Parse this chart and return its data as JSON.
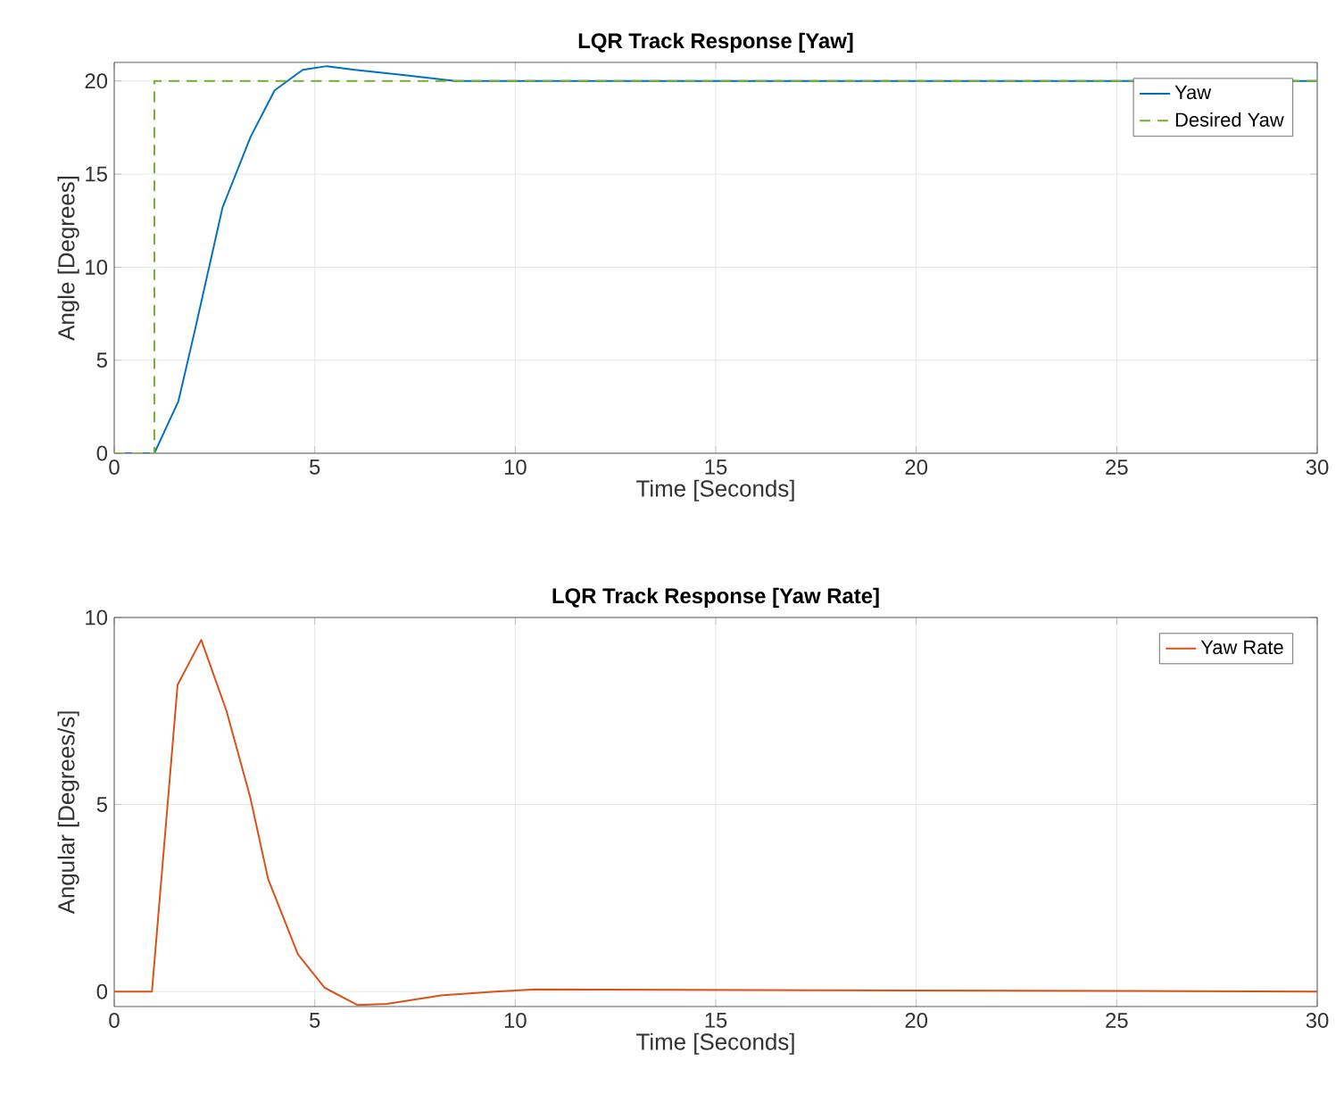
{
  "chart_data": [
    {
      "type": "line",
      "title": "LQR Track Response [Yaw]",
      "xlabel": "Time [Seconds]",
      "ylabel": "Angle [Degrees]",
      "xlim": [
        0,
        30
      ],
      "ylim": [
        0,
        21
      ],
      "xticks": [
        0,
        5,
        10,
        15,
        20,
        25,
        30
      ],
      "yticks": [
        0,
        5,
        10,
        15,
        20
      ],
      "grid": true,
      "legend": "top right",
      "series": [
        {
          "name": "Yaw",
          "color": "#0072bd",
          "line_style": "solid",
          "x": [
            0,
            0.9,
            1,
            1.6,
            2,
            2.7,
            3.4,
            4,
            4.7,
            5.3,
            6,
            7.3,
            8.5,
            10,
            30
          ],
          "values": [
            0,
            0,
            0,
            2.8,
            6.5,
            13.2,
            17,
            19.5,
            20.6,
            20.8,
            20.6,
            20.3,
            20,
            20,
            20
          ]
        },
        {
          "name": "Desired Yaw",
          "color": "#77ac30",
          "line_style": "dashed",
          "x": [
            0,
            1,
            1,
            30
          ],
          "values": [
            0,
            0,
            20,
            20
          ]
        }
      ]
    },
    {
      "type": "line",
      "title": "LQR Track Response [Yaw Rate]",
      "xlabel": "Time [Seconds]",
      "ylabel": "Angular [Degrees/s]",
      "xlim": [
        0,
        30
      ],
      "ylim": [
        -0.4,
        10
      ],
      "xticks": [
        0,
        5,
        10,
        15,
        20,
        25,
        30
      ],
      "yticks": [
        0,
        5,
        10
      ],
      "grid": true,
      "legend": "top right",
      "series": [
        {
          "name": "Yaw Rate",
          "color": "#d95319",
          "line_style": "solid",
          "x": [
            0,
            0.94,
            1.58,
            2.17,
            2.8,
            3.39,
            3.84,
            4.58,
            5.25,
            6.07,
            6.8,
            8.15,
            9.5,
            10.5,
            30
          ],
          "values": [
            0,
            0,
            8.2,
            9.4,
            7.5,
            5.2,
            3.0,
            1.0,
            0.1,
            -0.36,
            -0.33,
            -0.1,
            0,
            0.06,
            0
          ]
        }
      ]
    }
  ]
}
